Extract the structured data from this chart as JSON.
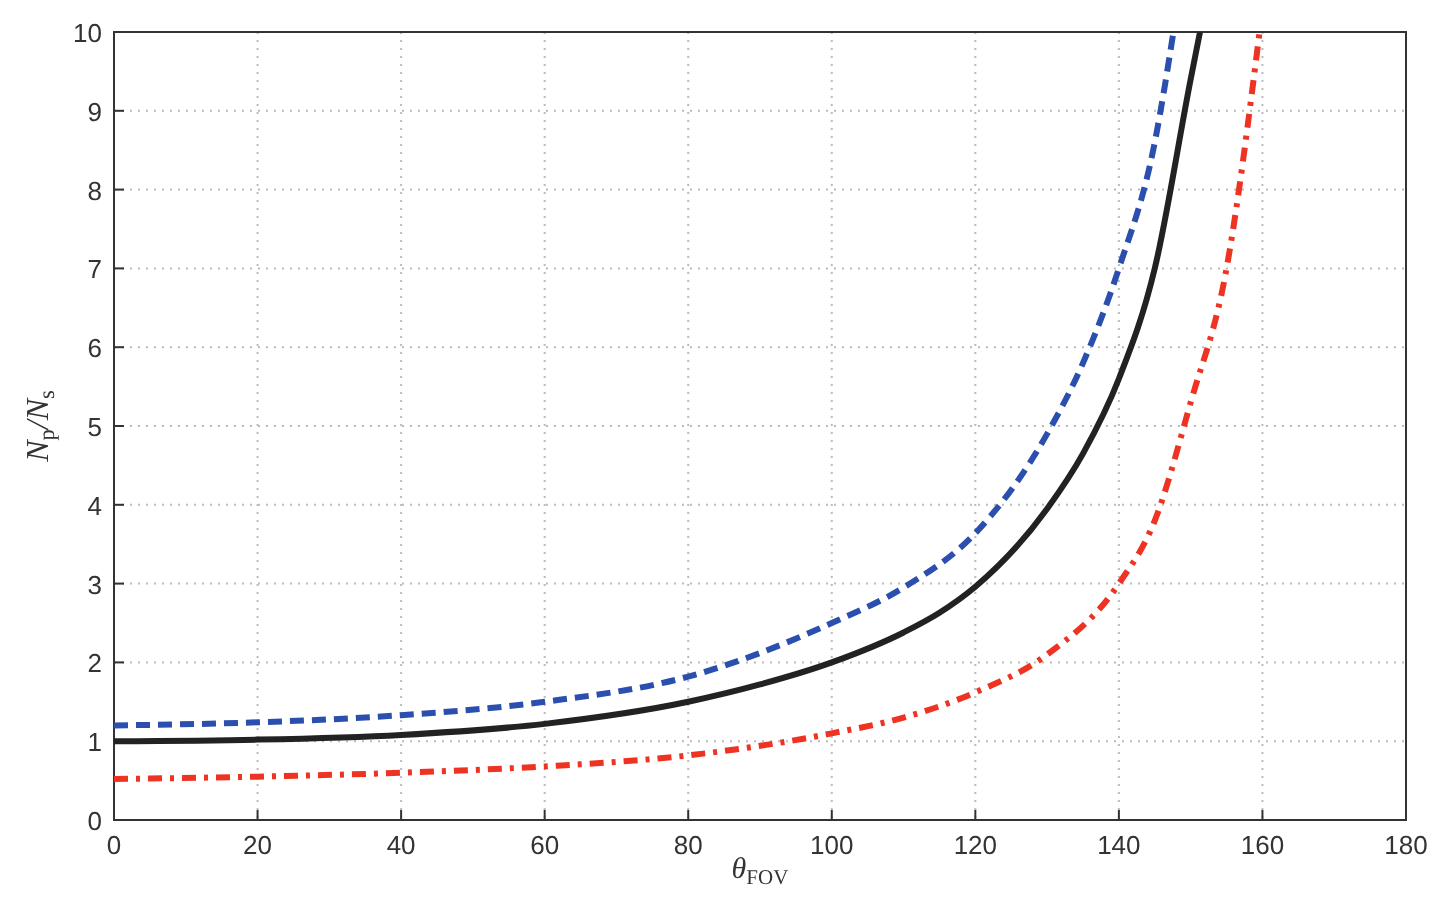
{
  "chart_data": {
    "type": "line",
    "xlabel": "θ$_{FOV}$",
    "ylabel": "N$_{p}$/N$_{s}$",
    "xlim": [
      0,
      180
    ],
    "ylim": [
      0,
      10
    ],
    "xticks": [
      0,
      20,
      40,
      60,
      80,
      100,
      120,
      140,
      160,
      180
    ],
    "yticks": [
      0,
      1,
      2,
      3,
      4,
      5,
      6,
      7,
      8,
      9,
      10
    ],
    "grid": true,
    "series": [
      {
        "color": "#2b4fae",
        "line_style": "dashed",
        "x": [
          0,
          20,
          40,
          60,
          80,
          100,
          110,
          120,
          130,
          135,
          140,
          145,
          147.6
        ],
        "values": [
          1.2,
          1.24,
          1.33,
          1.5,
          1.82,
          2.5,
          2.95,
          3.64,
          4.9,
          5.8,
          7.0,
          8.6,
          10
        ]
      },
      {
        "color": "#222222",
        "line_style": "solid",
        "x": [
          0,
          20,
          40,
          60,
          80,
          90,
          100,
          110,
          115,
          120,
          130,
          135,
          140,
          145,
          150,
          151.3
        ],
        "values": [
          1,
          1.02,
          1.08,
          1.22,
          1.5,
          1.72,
          2.0,
          2.38,
          2.63,
          2.96,
          3.95,
          4.65,
          5.6,
          7.0,
          9.4,
          10
        ]
      },
      {
        "color": "#ee3322",
        "line_style": "dashdot",
        "x": [
          0,
          20,
          40,
          60,
          80,
          100,
          110,
          120,
          130,
          140,
          145,
          150,
          155,
          159.6
        ],
        "values": [
          0.52,
          0.55,
          0.6,
          0.68,
          0.82,
          1.1,
          1.3,
          1.62,
          2.1,
          3.0,
          3.8,
          5.3,
          7.0,
          10
        ]
      }
    ]
  }
}
